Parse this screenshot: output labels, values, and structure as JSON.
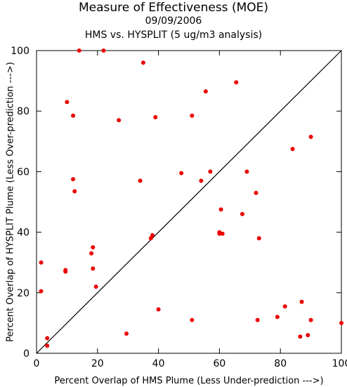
{
  "chart_data": {
    "type": "scatter",
    "title": "Measure of Effectiveness (MOE)",
    "subtitle_date": "09/09/2006",
    "subtitle_analysis": "HMS vs. HYSPLIT  (5 ug/m3 analysis)",
    "xlabel": "Percent Overlap of HMS Plume (Less Under-prediction --->)",
    "ylabel": "Percent Overlap of HYSPLIT Plume (Less Over-prediction --->)",
    "xlim": [
      0,
      100
    ],
    "ylim": [
      0,
      100
    ],
    "xticks": [
      0,
      20,
      40,
      60,
      80,
      100
    ],
    "yticks": [
      0,
      20,
      40,
      60,
      80,
      100
    ],
    "reference_line": "y = x",
    "point_color": "#ee0000",
    "points": [
      [
        14,
        100
      ],
      [
        22,
        100
      ],
      [
        35,
        96
      ],
      [
        10,
        83
      ],
      [
        12,
        78.5
      ],
      [
        27,
        77
      ],
      [
        39,
        78
      ],
      [
        51,
        78.5
      ],
      [
        55.5,
        86.5
      ],
      [
        65.5,
        89.5
      ],
      [
        90,
        71.5
      ],
      [
        84,
        67.5
      ],
      [
        12,
        57.5
      ],
      [
        12.5,
        53.5
      ],
      [
        34,
        57
      ],
      [
        47.5,
        59.5
      ],
      [
        54,
        57
      ],
      [
        57,
        60
      ],
      [
        69,
        60
      ],
      [
        72,
        53
      ],
      [
        60.5,
        47.5
      ],
      [
        67.5,
        46
      ],
      [
        60,
        40
      ],
      [
        60,
        39.5
      ],
      [
        61,
        39.5
      ],
      [
        73,
        38
      ],
      [
        38,
        39
      ],
      [
        37.5,
        38
      ],
      [
        18.5,
        35
      ],
      [
        18,
        33
      ],
      [
        1.5,
        30
      ],
      [
        18.5,
        28
      ],
      [
        9.5,
        27.5
      ],
      [
        9.5,
        27
      ],
      [
        19.5,
        22
      ],
      [
        1.5,
        20.5
      ],
      [
        40,
        14.5
      ],
      [
        87,
        17
      ],
      [
        81.5,
        15.5
      ],
      [
        79,
        12
      ],
      [
        72.5,
        11
      ],
      [
        51,
        11
      ],
      [
        90,
        11
      ],
      [
        100,
        10
      ],
      [
        29.5,
        6.5
      ],
      [
        89,
        6
      ],
      [
        86.5,
        5.5
      ],
      [
        3.5,
        5
      ],
      [
        3.5,
        2.5
      ]
    ]
  }
}
